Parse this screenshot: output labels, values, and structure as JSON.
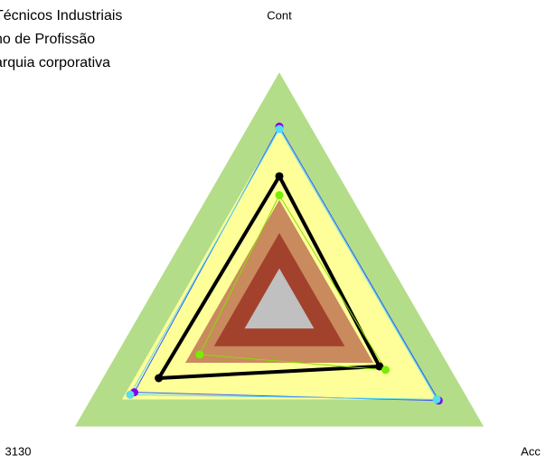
{
  "chart_data": {
    "type": "radar",
    "legend_labels": [
      "Técnicos Industriais",
      "no de Profissão",
      "arquia corporativa"
    ],
    "categories": [
      "Cont",
      "Acc",
      "3130"
    ],
    "rlim": [
      0,
      100
    ],
    "bands": [
      {
        "to": 100,
        "color": "#b3dd88"
      },
      {
        "to": 77,
        "color": "#ffff99"
      },
      {
        "to": 46,
        "color": "#c98a5e"
      },
      {
        "to": 32,
        "color": "#a3422c"
      },
      {
        "to": 17,
        "color": "#c0c0c0"
      }
    ],
    "series": [
      {
        "color": "#3355ff",
        "marker": "#8800ee",
        "width": 1,
        "values": [
          77,
          78,
          71
        ]
      },
      {
        "color": "#55ddee",
        "marker": "#55ddee",
        "width": 1,
        "values": [
          76,
          77,
          73
        ]
      },
      {
        "color": "#000000",
        "marker": "#000000",
        "width": 4,
        "values": [
          56,
          49,
          59
        ]
      },
      {
        "color": "#88dd00",
        "marker": "#77ee00",
        "width": 1,
        "values": [
          48,
          52,
          39
        ]
      }
    ]
  }
}
